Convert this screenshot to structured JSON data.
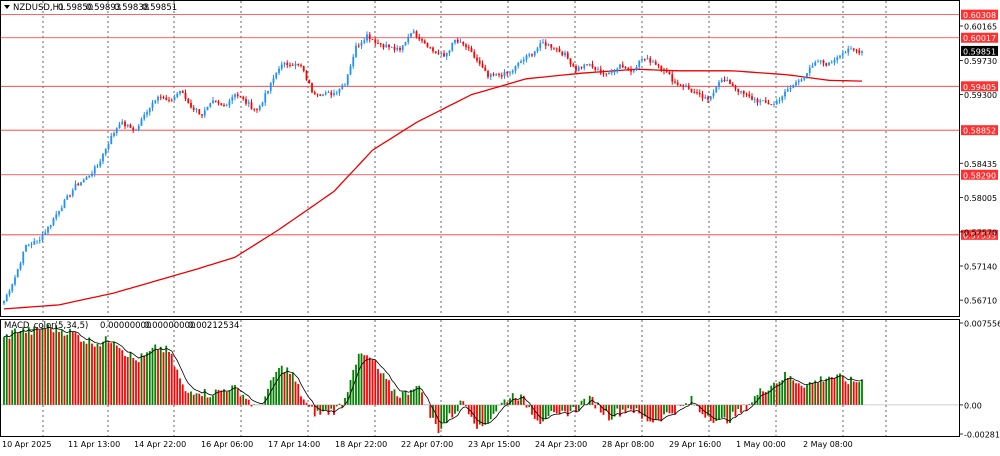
{
  "symbol_header": {
    "prefix": "NZDUSD,H1",
    "values": [
      "0.59850",
      "0.59893",
      "0.59838",
      "0.59851"
    ]
  },
  "indicator_header": {
    "name": "MACD_color(5,34,5)",
    "values": [
      "0.00000000",
      "0.00000000",
      "0.00212534"
    ]
  },
  "colors": {
    "bull": "#008000",
    "bear": "#ff0000",
    "candle_bull": "#1e90ff",
    "candle_bear": "#ff0000",
    "ma": "#ee0000",
    "level_line": "#ff3030",
    "current_price_bg": "#000000",
    "signal": "#000000",
    "grid": "#000000"
  },
  "chart_data": [
    {
      "type": "candlestick",
      "symbol": "NZDUSD",
      "timeframe": "H1",
      "ylim": [
        0.5651,
        0.6048
      ],
      "price_ticks": [
        "0.60165",
        "0.59730",
        "0.59300",
        "0.58435",
        "0.58005",
        "0.57570",
        "0.57140",
        "0.56710"
      ],
      "horizontal_levels": [
        "0.60308",
        "0.60017",
        "0.59405",
        "0.58852",
        "0.58290",
        "0.57533"
      ],
      "current_price": "0.59851",
      "x_ticks": [
        "10 Apr 2025",
        "11 Apr 13:00",
        "14 Apr 22:00",
        "16 Apr 06:00",
        "17 Apr 14:00",
        "18 Apr 22:00",
        "22 Apr 07:00",
        "23 Apr 15:00",
        "24 Apr 23:00",
        "28 Apr 08:00",
        "29 Apr 16:00",
        "1 May 00:00",
        "2 May 08:00"
      ],
      "close_path": [
        [
          0,
          0.567
        ],
        [
          4,
          0.57
        ],
        [
          8,
          0.574
        ],
        [
          12,
          0.5745
        ],
        [
          16,
          0.5762
        ],
        [
          20,
          0.5785
        ],
        [
          26,
          0.5815
        ],
        [
          30,
          0.5825
        ],
        [
          34,
          0.584
        ],
        [
          38,
          0.587
        ],
        [
          42,
          0.5895
        ],
        [
          48,
          0.5885
        ],
        [
          52,
          0.591
        ],
        [
          56,
          0.593
        ],
        [
          60,
          0.592
        ],
        [
          64,
          0.5935
        ],
        [
          68,
          0.5915
        ],
        [
          72,
          0.5905
        ],
        [
          76,
          0.592
        ],
        [
          80,
          0.5915
        ],
        [
          84,
          0.5932
        ],
        [
          88,
          0.592
        ],
        [
          92,
          0.591
        ],
        [
          96,
          0.5935
        ],
        [
          100,
          0.5965
        ],
        [
          104,
          0.597
        ],
        [
          108,
          0.5965
        ],
        [
          112,
          0.5935
        ],
        [
          116,
          0.593
        ],
        [
          120,
          0.5932
        ],
        [
          124,
          0.5945
        ],
        [
          128,
          0.599
        ],
        [
          132,
          0.6005
        ],
        [
          136,
          0.5995
        ],
        [
          140,
          0.599
        ],
        [
          144,
          0.5985
        ],
        [
          148,
          0.601
        ],
        [
          152,
          0.6
        ],
        [
          156,
          0.5985
        ],
        [
          160,
          0.5978
        ],
        [
          164,
          0.5998
        ],
        [
          168,
          0.599
        ],
        [
          172,
          0.5973
        ],
        [
          176,
          0.5952
        ],
        [
          180,
          0.5955
        ],
        [
          184,
          0.5957
        ],
        [
          188,
          0.5972
        ],
        [
          192,
          0.5982
        ],
        [
          196,
          0.5995
        ],
        [
          200,
          0.599
        ],
        [
          204,
          0.598
        ],
        [
          208,
          0.5962
        ],
        [
          212,
          0.5968
        ],
        [
          216,
          0.596
        ],
        [
          220,
          0.5955
        ],
        [
          224,
          0.5968
        ],
        [
          228,
          0.596
        ],
        [
          232,
          0.5975
        ],
        [
          236,
          0.5972
        ],
        [
          240,
          0.5962
        ],
        [
          244,
          0.5945
        ],
        [
          248,
          0.594
        ],
        [
          252,
          0.593
        ],
        [
          256,
          0.5922
        ],
        [
          260,
          0.5948
        ],
        [
          264,
          0.5945
        ],
        [
          268,
          0.5932
        ],
        [
          272,
          0.5925
        ],
        [
          276,
          0.592
        ],
        [
          280,
          0.5918
        ],
        [
          284,
          0.5932
        ],
        [
          288,
          0.5945
        ],
        [
          292,
          0.5958
        ],
        [
          296,
          0.5972
        ],
        [
          300,
          0.5968
        ],
        [
          304,
          0.5982
        ],
        [
          308,
          0.5986
        ],
        [
          312,
          0.5985
        ]
      ],
      "ma_path": [
        [
          0,
          0.566
        ],
        [
          20,
          0.5665
        ],
        [
          40,
          0.568
        ],
        [
          60,
          0.57
        ],
        [
          70,
          0.571
        ],
        [
          84,
          0.5725
        ],
        [
          100,
          0.576
        ],
        [
          120,
          0.5808
        ],
        [
          134,
          0.586
        ],
        [
          150,
          0.5895
        ],
        [
          170,
          0.593
        ],
        [
          190,
          0.595
        ],
        [
          210,
          0.5957
        ],
        [
          230,
          0.5962
        ],
        [
          245,
          0.596
        ],
        [
          265,
          0.596
        ],
        [
          285,
          0.5955
        ],
        [
          300,
          0.5948
        ],
        [
          312,
          0.5947
        ]
      ]
    },
    {
      "type": "histogram",
      "name": "MACD_color(5,34,5)",
      "ylim": [
        -0.0028,
        0.00765
      ],
      "y_ticks": [
        "0.0075564",
        "0.00",
        "-0.0028108"
      ],
      "shape": [
        [
          0,
          0.006
        ],
        [
          5,
          0.0068
        ],
        [
          10,
          0.0066
        ],
        [
          15,
          0.007
        ],
        [
          20,
          0.0068
        ],
        [
          25,
          0.0065
        ],
        [
          30,
          0.0058
        ],
        [
          35,
          0.0056
        ],
        [
          40,
          0.006
        ],
        [
          44,
          0.0048
        ],
        [
          48,
          0.004
        ],
        [
          52,
          0.0045
        ],
        [
          56,
          0.0052
        ],
        [
          60,
          0.0048
        ],
        [
          63,
          0.003
        ],
        [
          66,
          0.001
        ],
        [
          70,
          0.0014
        ],
        [
          74,
          0.001
        ],
        [
          78,
          0.0012
        ],
        [
          82,
          0.0016
        ],
        [
          86,
          0.0012
        ],
        [
          89,
          0.0004
        ],
        [
          92,
          -0.0004
        ],
        [
          96,
          0.0012
        ],
        [
          99,
          0.003
        ],
        [
          102,
          0.0034
        ],
        [
          105,
          0.0026
        ],
        [
          108,
          0.001
        ],
        [
          111,
          -0.0004
        ],
        [
          114,
          -0.0008
        ],
        [
          118,
          -0.0006
        ],
        [
          121,
          -0.0004
        ],
        [
          124,
          0.0005
        ],
        [
          127,
          0.0035
        ],
        [
          130,
          0.0045
        ],
        [
          134,
          0.004
        ],
        [
          137,
          0.0028
        ],
        [
          140,
          0.0018
        ],
        [
          143,
          0.001
        ],
        [
          146,
          0.001
        ],
        [
          149,
          0.0018
        ],
        [
          152,
          0.0012
        ],
        [
          155,
          -0.001
        ],
        [
          158,
          -0.0022
        ],
        [
          161,
          -0.0014
        ],
        [
          164,
          -0.0006
        ],
        [
          167,
          0.0004
        ],
        [
          170,
          -0.0008
        ],
        [
          173,
          -0.0022
        ],
        [
          176,
          -0.0014
        ],
        [
          179,
          -0.0004
        ],
        [
          183,
          0.0006
        ],
        [
          186,
          0.001
        ],
        [
          189,
          0.0004
        ],
        [
          192,
          -0.0006
        ],
        [
          195,
          -0.0014
        ],
        [
          198,
          -0.0008
        ],
        [
          201,
          -0.0012
        ],
        [
          205,
          -0.0006
        ],
        [
          208,
          -0.0004
        ],
        [
          211,
          0.0004
        ],
        [
          214,
          0.0004
        ],
        [
          217,
          -0.0004
        ],
        [
          220,
          -0.001
        ],
        [
          224,
          -0.0006
        ],
        [
          228,
          -0.0002
        ],
        [
          232,
          -0.0012
        ],
        [
          236,
          -0.0014
        ],
        [
          240,
          -0.001
        ],
        [
          244,
          -0.0004
        ],
        [
          247,
          -0.0002
        ],
        [
          250,
          0.0004
        ],
        [
          253,
          -0.0006
        ],
        [
          257,
          -0.001
        ],
        [
          260,
          -0.0016
        ],
        [
          264,
          -0.0012
        ],
        [
          268,
          -0.0006
        ],
        [
          272,
          0.0004
        ],
        [
          276,
          0.0014
        ],
        [
          280,
          0.002
        ],
        [
          284,
          0.0026
        ],
        [
          288,
          0.0022
        ],
        [
          292,
          0.0018
        ],
        [
          296,
          0.0022
        ],
        [
          300,
          0.0026
        ],
        [
          304,
          0.0024
        ],
        [
          308,
          0.0021
        ],
        [
          312,
          0.0022
        ]
      ]
    }
  ]
}
